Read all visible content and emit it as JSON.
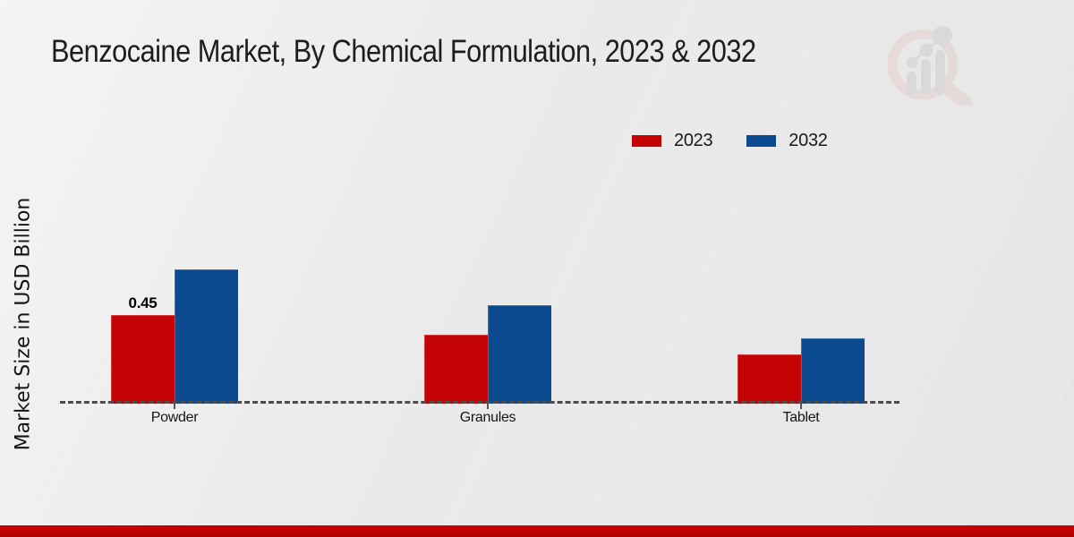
{
  "header": {
    "title": "Benzocaine Market, By Chemical Formulation, 2023 & 2032"
  },
  "icons": {
    "watermark": "magnifying-glass-bar-chart-watermark"
  },
  "colors": {
    "series_2023": "#c40404",
    "series_2032": "#0b4a8f",
    "footer_bar": "#c00000",
    "background": "#e9e9e9",
    "baseline": "#4c4c4c"
  },
  "chart_data": {
    "type": "bar",
    "categories": [
      "Powder",
      "Granules",
      "Tablet"
    ],
    "series": [
      {
        "name": "2023",
        "color": "#c40404",
        "values": [
          0.45,
          0.35,
          0.25
        ]
      },
      {
        "name": "2032",
        "color": "#0b4a8f",
        "values": [
          0.68,
          0.5,
          0.33
        ]
      }
    ],
    "title": "Benzocaine Market, By Chemical Formulation, 2023 & 2032",
    "xlabel": "",
    "ylabel": "Market Size in USD Billion",
    "ylim": [
      0,
      0.9
    ],
    "grid": false,
    "legend_position": "top-right",
    "baseline_style": "dashed",
    "data_labels": [
      {
        "category": "Powder",
        "series": "2023",
        "text": "0.45"
      }
    ]
  }
}
